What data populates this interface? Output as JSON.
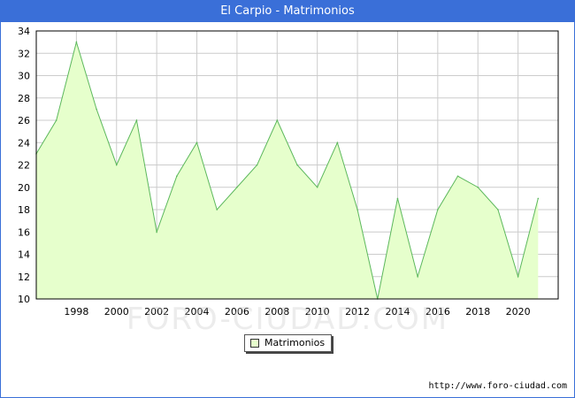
{
  "header": {
    "title": "El Carpio - Matrimonios"
  },
  "chart_data": {
    "type": "area",
    "title": "El Carpio - Matrimonios",
    "xlabel": "",
    "ylabel": "",
    "x": [
      1996,
      1997,
      1998,
      1999,
      2000,
      2001,
      2002,
      2003,
      2004,
      2005,
      2006,
      2007,
      2008,
      2009,
      2010,
      2011,
      2012,
      2013,
      2014,
      2015,
      2016,
      2017,
      2018,
      2019,
      2020,
      2021
    ],
    "series": [
      {
        "name": "Matrimonios",
        "values": [
          23,
          26,
          33,
          27,
          22,
          26,
          16,
          21,
          24,
          18,
          20,
          22,
          26,
          22,
          20,
          24,
          18,
          10,
          19,
          12,
          18,
          21,
          20,
          18,
          12,
          19
        ]
      }
    ],
    "xticks": [
      "1998",
      "2000",
      "2002",
      "2004",
      "2006",
      "2008",
      "2010",
      "2012",
      "2014",
      "2016",
      "2018",
      "2020"
    ],
    "yticks": [
      "10",
      "12",
      "14",
      "16",
      "18",
      "20",
      "22",
      "24",
      "26",
      "28",
      "30",
      "32",
      "34"
    ],
    "xlim": [
      1996,
      2022
    ],
    "ylim": [
      10,
      34
    ],
    "grid": true,
    "legend_position": "bottom-center",
    "colors": {
      "fill": "#e6ffcc",
      "line": "#5cb85c",
      "grid": "#cccccc",
      "header": "#3a6fd8"
    }
  },
  "legend": {
    "label": "Matrimonios"
  },
  "footer": {
    "source": "http://www.foro-ciudad.com"
  },
  "watermark": {
    "text": "FORO-CIUDAD.COM"
  }
}
